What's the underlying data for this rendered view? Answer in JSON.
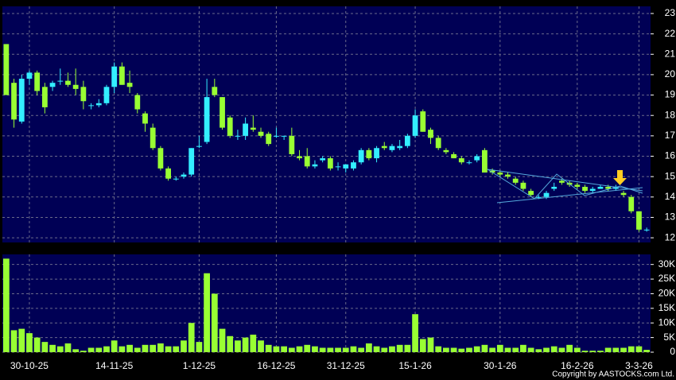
{
  "chart_data": [
    {
      "type": "candlestick",
      "categories": [
        null,
        null,
        null,
        "30-10-25",
        null,
        null,
        null,
        null,
        null,
        null,
        null,
        null,
        null,
        null,
        "14-11-25",
        null,
        null,
        null,
        null,
        null,
        null,
        null,
        null,
        null,
        null,
        "1-12-25",
        null,
        null,
        null,
        null,
        null,
        null,
        null,
        null,
        null,
        "16-12-25",
        null,
        null,
        null,
        null,
        null,
        null,
        null,
        null,
        "31-12-25",
        null,
        null,
        null,
        null,
        null,
        null,
        null,
        null,
        "15-1-26",
        null,
        null,
        null,
        null,
        null,
        null,
        null,
        null,
        null,
        null,
        "30-1-26",
        null,
        null,
        null,
        null,
        null,
        null,
        null,
        null,
        null,
        "16-2-26",
        null,
        null,
        null,
        null,
        null,
        null,
        null,
        "3-3-26",
        null
      ],
      "open": [
        21.5,
        19.6,
        17.7,
        19.8,
        20.1,
        19.4,
        19.4,
        19.7,
        19.7,
        19.5,
        19.4,
        18.5,
        18.5,
        18.6,
        19.4,
        20.4,
        19.6,
        19.0,
        18.1,
        17.4,
        16.4,
        15.4,
        14.9,
        15.0,
        15.1,
        16.5,
        16.7,
        19.4,
        18.9,
        17.9,
        17.0,
        17.0,
        17.4,
        17.2,
        17.1,
        17.0,
        17.0,
        17.0,
        16.0,
        16.0,
        15.5,
        15.8,
        15.9,
        15.5,
        15.4,
        15.4,
        15.7,
        16.3,
        15.9,
        16.5,
        16.3,
        16.4,
        16.5,
        17.0,
        18.2,
        17.3,
        16.9,
        16.3,
        16.1,
        15.9,
        15.7,
        15.8,
        16.3,
        15.3,
        15.2,
        15.1,
        14.9,
        14.7,
        14.3,
        14.0,
        14.0,
        14.4,
        14.8,
        14.7,
        14.6,
        14.5,
        14.3,
        14.4,
        14.5,
        14.4,
        14.2,
        14.0,
        13.3,
        12.4
      ],
      "high": [
        21.5,
        19.8,
        20.0,
        20.2,
        20.2,
        19.6,
        19.7,
        20.3,
        20.1,
        20.3,
        19.7,
        18.6,
        18.8,
        19.5,
        20.6,
        20.6,
        20.2,
        19.1,
        18.2,
        17.6,
        16.5,
        15.5,
        15.0,
        15.2,
        16.4,
        17.0,
        19.8,
        19.8,
        18.9,
        18.0,
        17.3,
        17.9,
        18.0,
        17.4,
        17.2,
        17.4,
        17.0,
        17.4,
        16.3,
        16.4,
        15.8,
        16.0,
        16.0,
        15.7,
        15.6,
        15.8,
        16.4,
        16.4,
        16.5,
        16.7,
        16.6,
        16.8,
        17.1,
        18.3,
        18.3,
        17.4,
        17.0,
        16.4,
        16.2,
        16.0,
        15.8,
        16.1,
        16.4,
        15.4,
        15.3,
        15.2,
        15.0,
        14.8,
        14.4,
        14.1,
        14.3,
        14.7,
        14.9,
        14.8,
        14.7,
        14.6,
        14.5,
        14.6,
        14.6,
        14.6,
        14.3,
        14.1,
        13.3,
        12.5
      ],
      "low": [
        19.0,
        17.4,
        17.6,
        19.5,
        19.0,
        18.1,
        19.2,
        19.5,
        19.4,
        19.0,
        18.3,
        18.3,
        18.4,
        18.5,
        19.1,
        19.5,
        19.1,
        18.1,
        17.2,
        16.3,
        15.3,
        14.8,
        14.8,
        14.9,
        15.0,
        16.4,
        16.6,
        18.9,
        17.3,
        16.9,
        16.8,
        16.8,
        17.2,
        16.9,
        16.5,
        16.9,
        16.8,
        16.0,
        15.8,
        15.4,
        15.4,
        15.7,
        15.3,
        15.3,
        15.2,
        15.3,
        15.6,
        15.8,
        15.7,
        16.3,
        16.2,
        16.3,
        16.4,
        16.9,
        17.2,
        16.6,
        16.3,
        16.1,
        15.9,
        15.6,
        15.6,
        15.7,
        15.2,
        15.1,
        15.0,
        14.9,
        14.6,
        14.3,
        14.0,
        13.9,
        13.9,
        14.3,
        14.6,
        14.5,
        14.4,
        14.2,
        14.2,
        14.4,
        14.3,
        14.3,
        14.0,
        13.2,
        12.3,
        12.3
      ],
      "close": [
        19.0,
        17.8,
        19.8,
        20.1,
        19.2,
        18.4,
        19.6,
        19.7,
        19.5,
        19.3,
        18.7,
        18.5,
        18.6,
        19.4,
        20.4,
        19.5,
        19.4,
        18.3,
        17.6,
        16.4,
        15.4,
        14.9,
        14.9,
        15.1,
        16.4,
        16.5,
        18.9,
        19.0,
        17.4,
        17.0,
        17.0,
        17.6,
        17.3,
        17.0,
        16.6,
        17.0,
        17.0,
        16.1,
        15.9,
        15.5,
        15.6,
        15.9,
        15.4,
        15.5,
        15.6,
        15.7,
        16.3,
        15.9,
        16.4,
        16.4,
        16.5,
        16.5,
        17.0,
        18.0,
        17.2,
        16.9,
        16.4,
        16.2,
        15.9,
        15.7,
        15.7,
        16.0,
        15.2,
        15.2,
        15.1,
        15.0,
        14.7,
        14.4,
        14.1,
        14.0,
        14.2,
        14.5,
        14.7,
        14.6,
        14.5,
        14.3,
        14.4,
        14.5,
        14.4,
        14.5,
        14.1,
        13.3,
        12.4,
        12.4
      ],
      "up_color": "#33eeff",
      "down_color": "#99ff33",
      "ylim": [
        11.77,
        23.35
      ],
      "yticks": [
        12,
        13,
        14,
        15,
        16,
        17,
        18,
        19,
        20,
        21,
        22,
        23
      ],
      "grid": true
    },
    {
      "type": "bar",
      "values": [
        32000,
        7500,
        8000,
        6500,
        5000,
        3500,
        2500,
        2000,
        3000,
        1000,
        500,
        1500,
        1500,
        2000,
        4000,
        2000,
        2500,
        1500,
        2500,
        2500,
        3000,
        2000,
        2000,
        4000,
        10000,
        3500,
        27000,
        20000,
        8000,
        5500,
        4000,
        5000,
        6000,
        4000,
        2500,
        2000,
        2000,
        1500,
        2000,
        2500,
        2000,
        1500,
        1500,
        1500,
        1500,
        2000,
        1500,
        3000,
        2000,
        1500,
        2000,
        2500,
        2500,
        13000,
        4500,
        5000,
        2000,
        1500,
        1500,
        1200,
        1500,
        2000,
        2500,
        1500,
        2500,
        1500,
        1500,
        2500,
        1500,
        1000,
        1500,
        2000,
        1500,
        2500,
        1500,
        500,
        500,
        500,
        1500,
        1500,
        1500,
        2000,
        2000,
        800
      ],
      "color": "#99ff33",
      "ylim": [
        0,
        33450
      ],
      "yticks": [
        0,
        {
          "value": 5000,
          "label": "5K"
        },
        {
          "value": 10000,
          "label": "10K"
        },
        {
          "value": 15000,
          "label": "15K"
        },
        {
          "value": 20000,
          "label": "20K"
        },
        {
          "value": 25000,
          "label": "25K"
        },
        {
          "value": 30000,
          "label": "30K"
        }
      ],
      "grid": true
    }
  ],
  "copyright": "Copyright by AASTOCKS.com Ltd."
}
